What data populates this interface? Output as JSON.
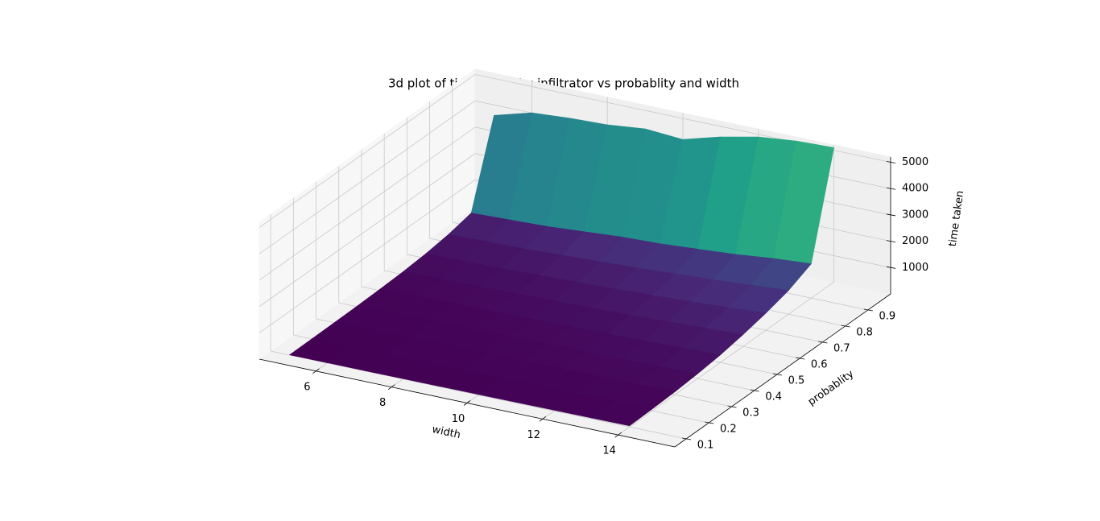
{
  "chart_data": {
    "type": "surface",
    "title": "3d plot of time taken by infiltrator vs probablity and width",
    "xlabel": "width",
    "ylabel": "probablity",
    "zlabel": "time taken",
    "colormap": "viridis",
    "grid": true,
    "x": [
      5,
      6,
      7,
      8,
      9,
      10,
      11,
      12,
      13,
      14
    ],
    "y": [
      0.1,
      0.2,
      0.3,
      0.4,
      0.5,
      0.6,
      0.7,
      0.8,
      0.9,
      1.0
    ],
    "z": [
      [
        8,
        10,
        12,
        15,
        18,
        22,
        26,
        30,
        35,
        40
      ],
      [
        15,
        18,
        22,
        27,
        32,
        38,
        45,
        52,
        60,
        70
      ],
      [
        25,
        30,
        35,
        45,
        55,
        65,
        75,
        85,
        100,
        115
      ],
      [
        40,
        50,
        60,
        70,
        85,
        100,
        115,
        135,
        160,
        185
      ],
      [
        70,
        80,
        95,
        110,
        130,
        150,
        180,
        210,
        250,
        290
      ],
      [
        110,
        130,
        150,
        180,
        210,
        240,
        280,
        330,
        390,
        450
      ],
      [
        180,
        200,
        230,
        270,
        310,
        360,
        420,
        480,
        560,
        650
      ],
      [
        300,
        330,
        360,
        420,
        480,
        540,
        620,
        700,
        800,
        900
      ],
      [
        500,
        550,
        600,
        700,
        800,
        850,
        950,
        1050,
        1200,
        1300
      ],
      [
        3600,
        4000,
        4100,
        4150,
        4300,
        4200,
        4600,
        4900,
        5050,
        5100
      ]
    ],
    "xlim": [
      4.5,
      15.5
    ],
    "ylim": [
      0.05,
      1.0
    ],
    "zlim": [
      0,
      5200
    ],
    "xticks": [
      6,
      8,
      10,
      12,
      14
    ],
    "yticks": [
      0.1,
      0.2,
      0.3,
      0.4,
      0.5,
      0.6,
      0.7,
      0.8,
      0.9
    ],
    "zticks": [
      1000,
      2000,
      3000,
      4000,
      5000
    ]
  }
}
